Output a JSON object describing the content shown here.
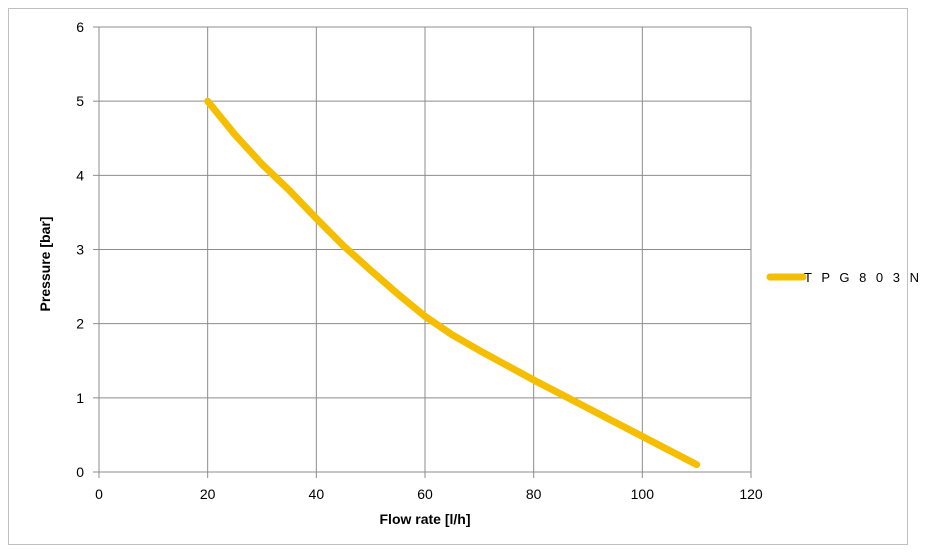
{
  "chart_data": {
    "type": "line",
    "title": "",
    "xlabel": "Flow rate [l/h]",
    "ylabel": "Pressure [bar]",
    "xlim": [
      0,
      120
    ],
    "ylim": [
      0,
      6
    ],
    "x_ticks": [
      "0",
      "20",
      "40",
      "60",
      "80",
      "100",
      "120"
    ],
    "y_ticks": [
      "0",
      "1",
      "2",
      "3",
      "4",
      "5",
      "6"
    ],
    "grid": true,
    "legend_position": "right",
    "series": [
      {
        "name": "T P G 8 0 3 N",
        "color": "#f5be00",
        "x": [
          20,
          25,
          30,
          35,
          40,
          45,
          50,
          55,
          60,
          65,
          70,
          80,
          90,
          100,
          110
        ],
        "y": [
          5.0,
          4.55,
          4.15,
          3.8,
          3.42,
          3.05,
          2.72,
          2.4,
          2.1,
          1.85,
          1.64,
          1.24,
          0.86,
          0.48,
          0.1
        ]
      }
    ]
  }
}
